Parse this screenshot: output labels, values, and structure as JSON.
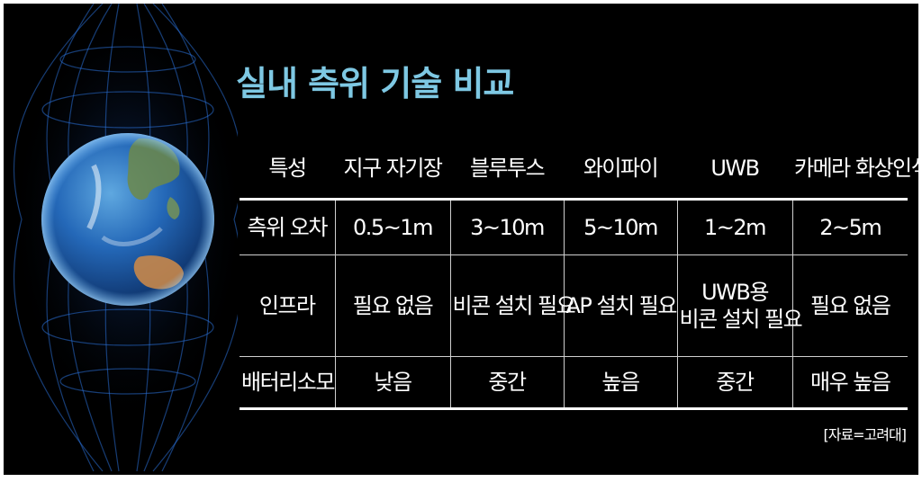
{
  "title": "실내 측위 기술 비교",
  "table": {
    "headers": [
      "특성",
      "지구 자기장",
      "블루투스",
      "와이파이",
      "UWB",
      "카메라 화상인식"
    ],
    "rows": [
      [
        "측위 오차",
        "0.5~1m",
        "3~10m",
        "5~10m",
        "1~2m",
        "2~5m"
      ],
      [
        "인프라",
        "필요 없음",
        "비콘 설치 필요",
        "AP 설치 필요",
        [
          "UWB용",
          "비콘 설치 필요"
        ],
        "필요 없음"
      ],
      [
        "배터리소모",
        "낮음",
        "중간",
        "높음",
        "중간",
        "매우 높음"
      ]
    ]
  },
  "source": "[자료=고려대]",
  "colors": {
    "background": "#000000",
    "title": "#7ec8e3",
    "text": "#ffffff",
    "earth_field_lines": "#2a6fd6"
  },
  "illustration": {
    "name": "earth-magnetic-field-illustration"
  }
}
